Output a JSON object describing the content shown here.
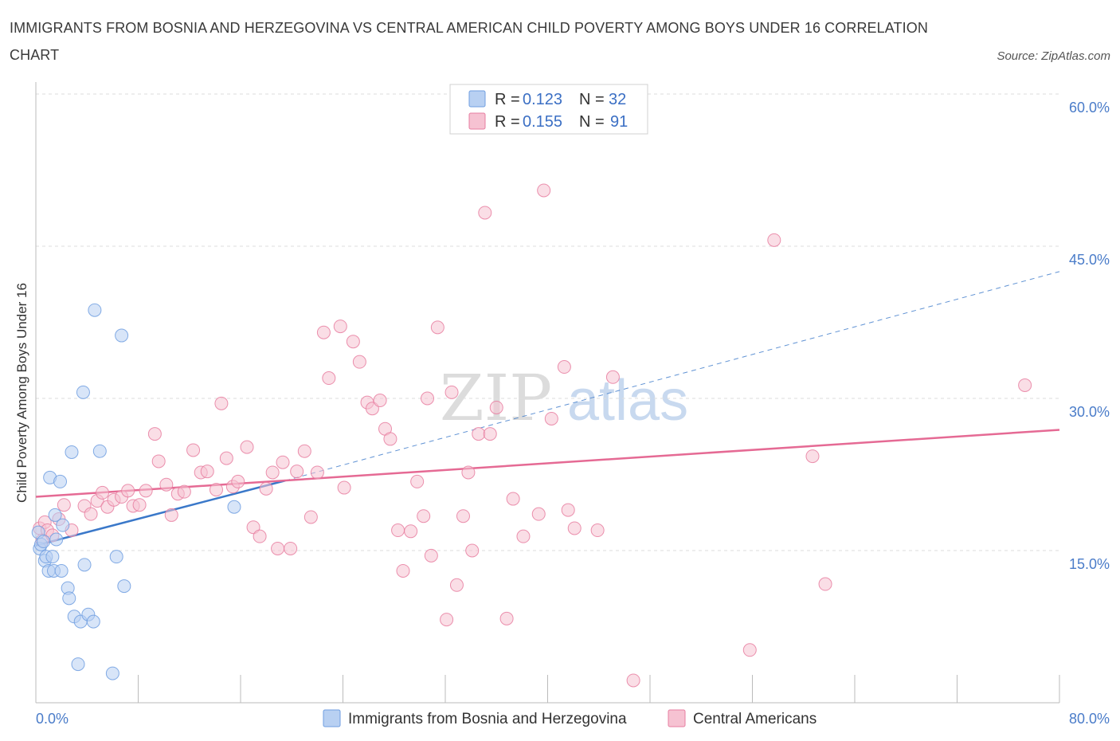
{
  "title": "IMMIGRANTS FROM BOSNIA AND HERZEGOVINA VS CENTRAL AMERICAN CHILD POVERTY AMONG BOYS UNDER 16 CORRELATION CHART",
  "source": "Source: ZipAtlas.com",
  "watermark": {
    "zip": "ZIP",
    "atlas": "atlas"
  },
  "colors": {
    "blue": "#6f9ee0",
    "blue_fill": "#b8d0f2",
    "pink": "#e77ea0",
    "pink_fill": "#f6c2d2",
    "blue_line": "#3a78c9",
    "pink_line": "#e56a94",
    "axis_text": "#4a7cc9"
  },
  "legend": {
    "r_label": "R =",
    "n_label": "N =",
    "series": [
      {
        "r": "0.123",
        "n": "32"
      },
      {
        "r": "0.155",
        "n": "91"
      }
    ]
  },
  "chart_data": {
    "type": "scatter",
    "title": "IMMIGRANTS FROM BOSNIA AND HERZEGOVINA VS CENTRAL AMERICAN CHILD POVERTY AMONG BOYS UNDER 16 CORRELATION CHART",
    "xlabel": "",
    "ylabel": "Child Poverty Among Boys Under 16",
    "xlim": [
      0,
      80
    ],
    "ylim": [
      0,
      60
    ],
    "x_tick_labels": [
      "0.0%",
      "80.0%"
    ],
    "y_tick_labels": [
      "15.0%",
      "30.0%",
      "45.0%",
      "60.0%"
    ],
    "y_ticks": [
      15,
      30,
      45,
      60
    ],
    "grid": true,
    "legend_position": "top-center",
    "series": [
      {
        "name": "Immigrants from Bosnia and Herzegovina",
        "r": 0.123,
        "n": 32,
        "trend": {
          "x0": 0,
          "y0": 15.5,
          "x1": 19.5,
          "y1": 21.9,
          "dashed_to_x": 80,
          "dashed_to_y": 42.5
        },
        "points": [
          [
            0.2,
            16.8
          ],
          [
            0.3,
            15.2
          ],
          [
            0.4,
            15.6
          ],
          [
            0.6,
            15.9
          ],
          [
            0.7,
            14.0
          ],
          [
            0.8,
            14.4
          ],
          [
            1.0,
            13.0
          ],
          [
            1.1,
            22.2
          ],
          [
            1.3,
            14.4
          ],
          [
            1.4,
            13.0
          ],
          [
            1.5,
            18.5
          ],
          [
            1.6,
            16.1
          ],
          [
            1.9,
            21.8
          ],
          [
            2.0,
            13.0
          ],
          [
            2.1,
            17.5
          ],
          [
            2.5,
            11.3
          ],
          [
            2.6,
            10.3
          ],
          [
            2.8,
            24.7
          ],
          [
            3.0,
            8.5
          ],
          [
            3.3,
            3.8
          ],
          [
            3.5,
            8.0
          ],
          [
            3.7,
            30.6
          ],
          [
            3.8,
            13.6
          ],
          [
            4.1,
            8.7
          ],
          [
            4.5,
            8.0
          ],
          [
            4.6,
            38.7
          ],
          [
            5.0,
            24.8
          ],
          [
            6.0,
            2.9
          ],
          [
            6.3,
            14.4
          ],
          [
            6.7,
            36.2
          ],
          [
            6.9,
            11.5
          ],
          [
            15.5,
            19.3
          ]
        ]
      },
      {
        "name": "Central Americans",
        "r": 0.155,
        "n": 91,
        "trend": {
          "x0": 0,
          "y0": 20.3,
          "x1": 80,
          "y1": 26.9
        },
        "points": [
          [
            0.3,
            17.2
          ],
          [
            0.5,
            16.0
          ],
          [
            0.7,
            17.8
          ],
          [
            0.9,
            17.0
          ],
          [
            1.3,
            16.5
          ],
          [
            1.8,
            18.1
          ],
          [
            2.2,
            19.5
          ],
          [
            2.8,
            17.0
          ],
          [
            3.8,
            19.4
          ],
          [
            4.3,
            18.6
          ],
          [
            4.8,
            19.9
          ],
          [
            5.2,
            20.7
          ],
          [
            5.6,
            19.3
          ],
          [
            6.1,
            20.0
          ],
          [
            6.7,
            20.3
          ],
          [
            7.2,
            20.9
          ],
          [
            7.6,
            19.4
          ],
          [
            8.1,
            19.5
          ],
          [
            8.6,
            20.9
          ],
          [
            9.3,
            26.5
          ],
          [
            9.6,
            23.8
          ],
          [
            10.2,
            21.5
          ],
          [
            10.6,
            18.5
          ],
          [
            11.1,
            20.6
          ],
          [
            11.6,
            20.8
          ],
          [
            12.3,
            24.9
          ],
          [
            12.9,
            22.7
          ],
          [
            13.4,
            22.8
          ],
          [
            14.1,
            21.0
          ],
          [
            14.5,
            29.5
          ],
          [
            14.9,
            24.1
          ],
          [
            15.4,
            21.3
          ],
          [
            15.8,
            21.8
          ],
          [
            16.5,
            25.2
          ],
          [
            17.0,
            17.3
          ],
          [
            17.5,
            16.4
          ],
          [
            18.0,
            21.1
          ],
          [
            18.5,
            22.7
          ],
          [
            18.9,
            15.2
          ],
          [
            19.3,
            23.7
          ],
          [
            19.9,
            15.2
          ],
          [
            20.4,
            22.8
          ],
          [
            21.0,
            24.8
          ],
          [
            21.5,
            18.3
          ],
          [
            22.0,
            22.7
          ],
          [
            22.5,
            36.5
          ],
          [
            22.9,
            32.0
          ],
          [
            23.8,
            37.1
          ],
          [
            24.1,
            21.2
          ],
          [
            24.8,
            35.6
          ],
          [
            25.3,
            33.6
          ],
          [
            25.9,
            29.6
          ],
          [
            26.3,
            29.0
          ],
          [
            26.9,
            29.8
          ],
          [
            27.3,
            27.0
          ],
          [
            27.7,
            26.0
          ],
          [
            28.3,
            17.0
          ],
          [
            28.7,
            13.0
          ],
          [
            29.3,
            16.9
          ],
          [
            29.8,
            21.8
          ],
          [
            30.3,
            18.4
          ],
          [
            30.6,
            30.0
          ],
          [
            30.9,
            14.5
          ],
          [
            31.4,
            37.0
          ],
          [
            32.1,
            8.2
          ],
          [
            32.5,
            30.6
          ],
          [
            32.9,
            11.6
          ],
          [
            33.4,
            18.4
          ],
          [
            33.8,
            22.7
          ],
          [
            34.1,
            15.0
          ],
          [
            34.6,
            26.5
          ],
          [
            35.1,
            48.3
          ],
          [
            35.5,
            26.5
          ],
          [
            36.0,
            29.1
          ],
          [
            36.8,
            8.3
          ],
          [
            37.3,
            20.1
          ],
          [
            38.1,
            16.4
          ],
          [
            39.3,
            18.6
          ],
          [
            39.7,
            50.5
          ],
          [
            40.3,
            28.0
          ],
          [
            41.3,
            33.1
          ],
          [
            41.6,
            19.0
          ],
          [
            42.1,
            17.2
          ],
          [
            43.9,
            17.0
          ],
          [
            45.1,
            32.1
          ],
          [
            46.7,
            2.2
          ],
          [
            55.8,
            5.2
          ],
          [
            57.7,
            45.6
          ],
          [
            60.7,
            24.3
          ],
          [
            61.7,
            11.7
          ],
          [
            77.3,
            31.3
          ]
        ]
      }
    ]
  },
  "bottom_legend": [
    {
      "label": "Immigrants from Bosnia and Herzegovina"
    },
    {
      "label": "Central Americans"
    }
  ]
}
